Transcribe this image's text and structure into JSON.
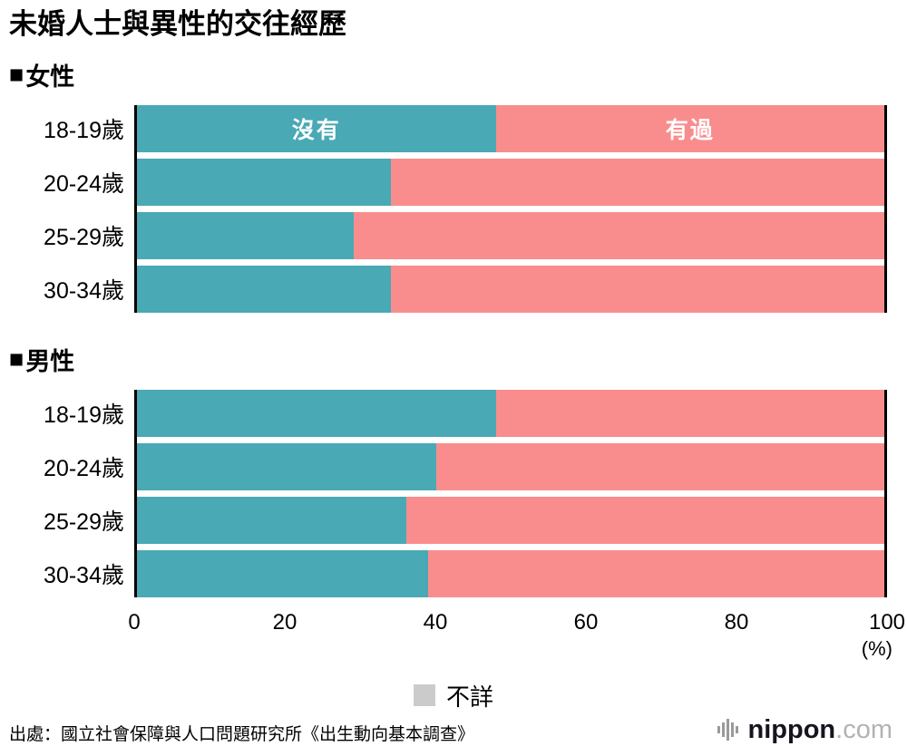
{
  "title": "未婚人士與異性的交往經歷",
  "section_marker": "■",
  "axis": {
    "ticks": [
      0,
      20,
      40,
      60,
      80,
      100
    ],
    "unit": "(%)"
  },
  "legend": {
    "unknown": "不詳"
  },
  "source": "出處：國立社會保障與人口問題研究所《出生動向基本調查》",
  "logo": {
    "name": "nippon",
    "tld": ".com"
  },
  "colors": {
    "none": "#49a9b5",
    "had": "#f98d8d",
    "unknown": "#cbcbcb"
  },
  "chart_data": [
    {
      "type": "bar",
      "orientation": "horizontal",
      "stacked": true,
      "title": "女性",
      "categories": [
        "18-19歲",
        "20-24歲",
        "25-29歲",
        "30-34歲"
      ],
      "series": [
        {
          "name": "沒有",
          "color": "#49a9b5",
          "values": [
            48,
            34,
            29,
            34
          ]
        },
        {
          "name": "有過",
          "color": "#f98d8d",
          "values": [
            52,
            66,
            71,
            66
          ]
        }
      ],
      "xlim": [
        0,
        100
      ],
      "xticks": [
        0,
        20,
        40,
        60,
        80,
        100
      ],
      "unit": "(%)",
      "grid": false,
      "legend_position": "inside-first-bar"
    },
    {
      "type": "bar",
      "orientation": "horizontal",
      "stacked": true,
      "title": "男性",
      "categories": [
        "18-19歲",
        "20-24歲",
        "25-29歲",
        "30-34歲"
      ],
      "series": [
        {
          "name": "沒有",
          "color": "#49a9b5",
          "values": [
            48,
            40,
            36,
            39
          ]
        },
        {
          "name": "有過",
          "color": "#f98d8d",
          "values": [
            52,
            60,
            64,
            61
          ]
        }
      ],
      "xlim": [
        0,
        100
      ],
      "xticks": [
        0,
        20,
        40,
        60,
        80,
        100
      ],
      "unit": "(%)",
      "grid": false,
      "legend_position": "none"
    }
  ]
}
